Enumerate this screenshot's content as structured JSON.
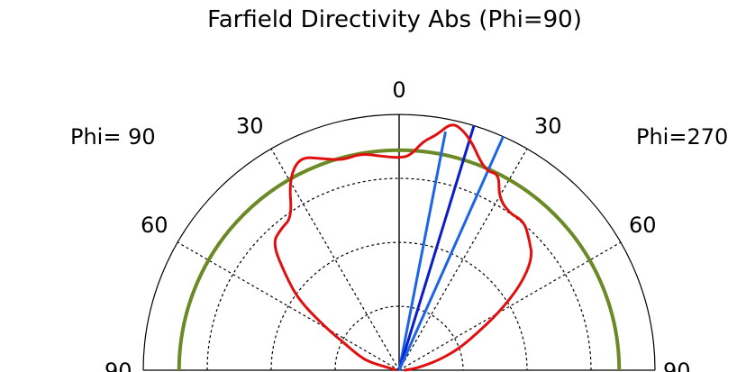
{
  "chart_data": {
    "type": "polar",
    "title": "Farfield Directivity Abs (Phi=90)",
    "side_labels": {
      "left": "Phi= 90",
      "right": "Phi=270"
    },
    "top_label": "0",
    "angle_labels": [
      "30",
      "60",
      "90"
    ],
    "radial_rings": 4,
    "grid": "dashed",
    "reference_circle": {
      "relative_radius": 0.86,
      "color": "#6b8a26"
    },
    "beam_lines": [
      {
        "angle_deg": 11,
        "relative_length": 0.95,
        "color": "#1e64e6"
      },
      {
        "angle_deg": 17,
        "relative_length": 1.0,
        "color": "#0a1ec8"
      },
      {
        "angle_deg": 24,
        "relative_length": 1.0,
        "color": "#1e64e6"
      }
    ],
    "pattern": {
      "color": "#e01010",
      "angle_deg": [
        -90,
        -80,
        -75,
        -70,
        -65,
        -60,
        -55,
        -50,
        -45,
        -40,
        -35,
        -30,
        -25,
        -20,
        -15,
        -10,
        -5,
        0,
        3,
        6,
        9,
        12,
        15,
        18,
        21,
        24,
        27,
        30,
        35,
        40,
        45,
        50,
        55,
        60,
        65,
        70,
        75,
        80,
        85,
        90
      ],
      "relative_radius": [
        0.01,
        0.02,
        0.12,
        0.17,
        0.22,
        0.33,
        0.48,
        0.58,
        0.7,
        0.72,
        0.73,
        0.86,
        0.92,
        0.88,
        0.85,
        0.86,
        0.84,
        0.83,
        0.84,
        0.9,
        0.93,
        0.99,
        0.97,
        0.93,
        0.88,
        0.85,
        0.86,
        0.78,
        0.75,
        0.76,
        0.72,
        0.68,
        0.58,
        0.45,
        0.33,
        0.25,
        0.17,
        0.1,
        0.05,
        0.02
      ]
    }
  }
}
